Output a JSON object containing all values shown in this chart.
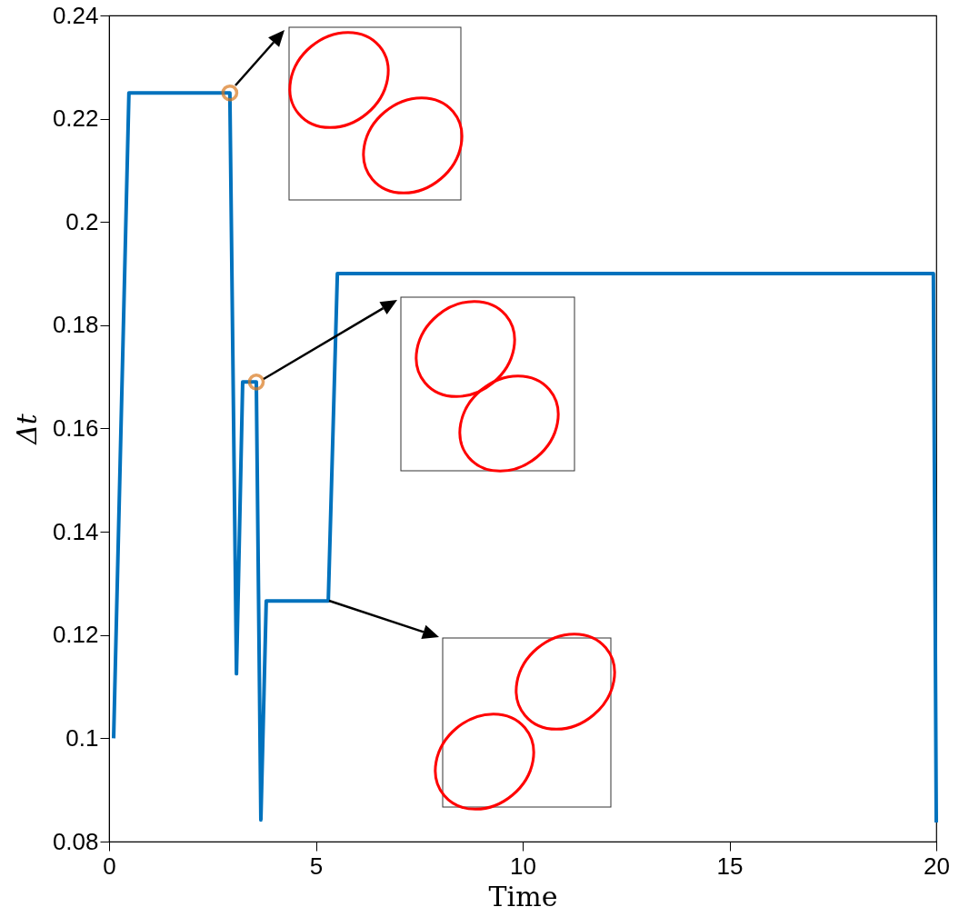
{
  "chart_data": {
    "type": "line",
    "xlabel": "Time",
    "ylabel": "Δt",
    "xlim": [
      0,
      20
    ],
    "ylim": [
      0.08,
      0.24
    ],
    "xticks": [
      0,
      5,
      10,
      15,
      20
    ],
    "yticks": [
      0.08,
      0.1,
      0.12,
      0.14,
      0.16,
      0.18,
      0.2,
      0.22,
      0.24
    ],
    "grid": false,
    "series": [
      {
        "color": "#0072bd",
        "line_style": "solid",
        "marker": "none",
        "x": [
          0.11,
          0.48,
          2.92,
          3.08,
          3.23,
          3.56,
          3.67,
          3.8,
          5.3,
          5.52,
          19.93,
          20
        ],
        "values": [
          0.1,
          0.225,
          0.225,
          0.1125,
          0.169,
          0.169,
          0.0842,
          0.1266,
          0.1266,
          0.19,
          0.19,
          0.0837
        ]
      },
      {
        "type": "scatter",
        "color": "#d9781e",
        "marker": "circle",
        "x": [
          2.92,
          3.56
        ],
        "values": [
          0.225,
          0.169
        ]
      }
    ]
  }
}
